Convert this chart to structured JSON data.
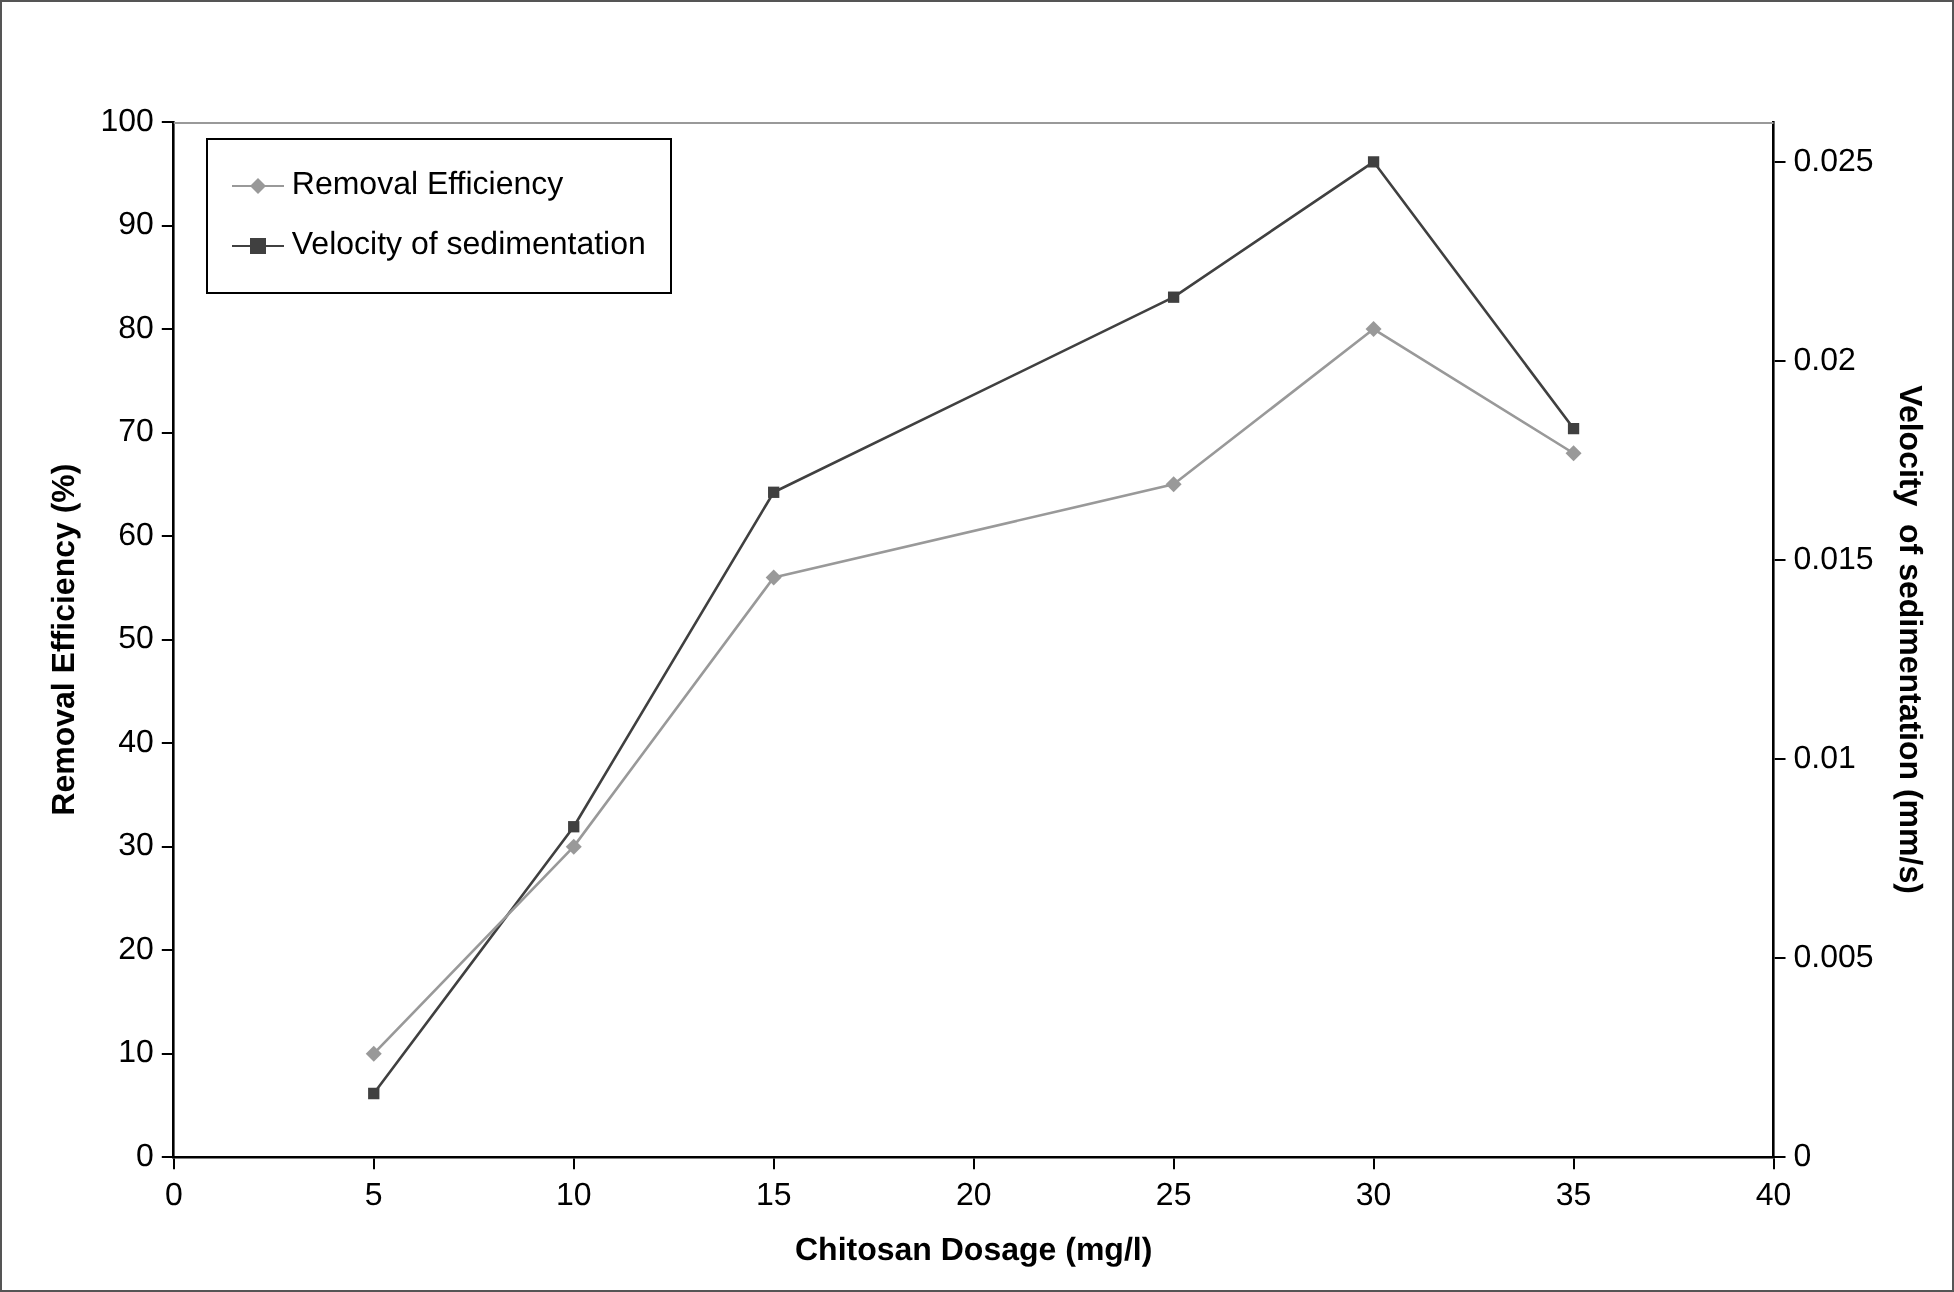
{
  "chart_data": {
    "type": "line",
    "xlabel": "Chitosan Dosage (mg/l)",
    "ylabel": "Removal Efficiency (%)",
    "y2label": "Velocity  of sedimentation (mm/s)",
    "x": [
      5,
      10,
      15,
      25,
      30,
      35
    ],
    "series": [
      {
        "name": "Removal Efficiency",
        "color": "#999999",
        "marker": "diamond",
        "values": [
          10,
          30,
          56,
          65,
          80,
          68
        ]
      },
      {
        "name": "Velocity of sedimentation",
        "color": "#404040",
        "marker": "square",
        "axis": "y2",
        "values": [
          0.0016,
          0.0083,
          0.0167,
          0.0216,
          0.025,
          0.0183
        ]
      }
    ],
    "xlim": [
      0,
      40
    ],
    "xticks": [
      0,
      5,
      10,
      15,
      20,
      25,
      30,
      35,
      40
    ],
    "ylim": [
      0,
      100
    ],
    "yticks": [
      0,
      10,
      20,
      30,
      40,
      50,
      60,
      70,
      80,
      90,
      100
    ],
    "y2lim": [
      0,
      0.026
    ],
    "y2ticks": [
      0,
      0.005,
      0.01,
      0.015,
      0.02,
      0.025
    ],
    "grid": false,
    "legend": "top left",
    "line_style": "solid"
  }
}
